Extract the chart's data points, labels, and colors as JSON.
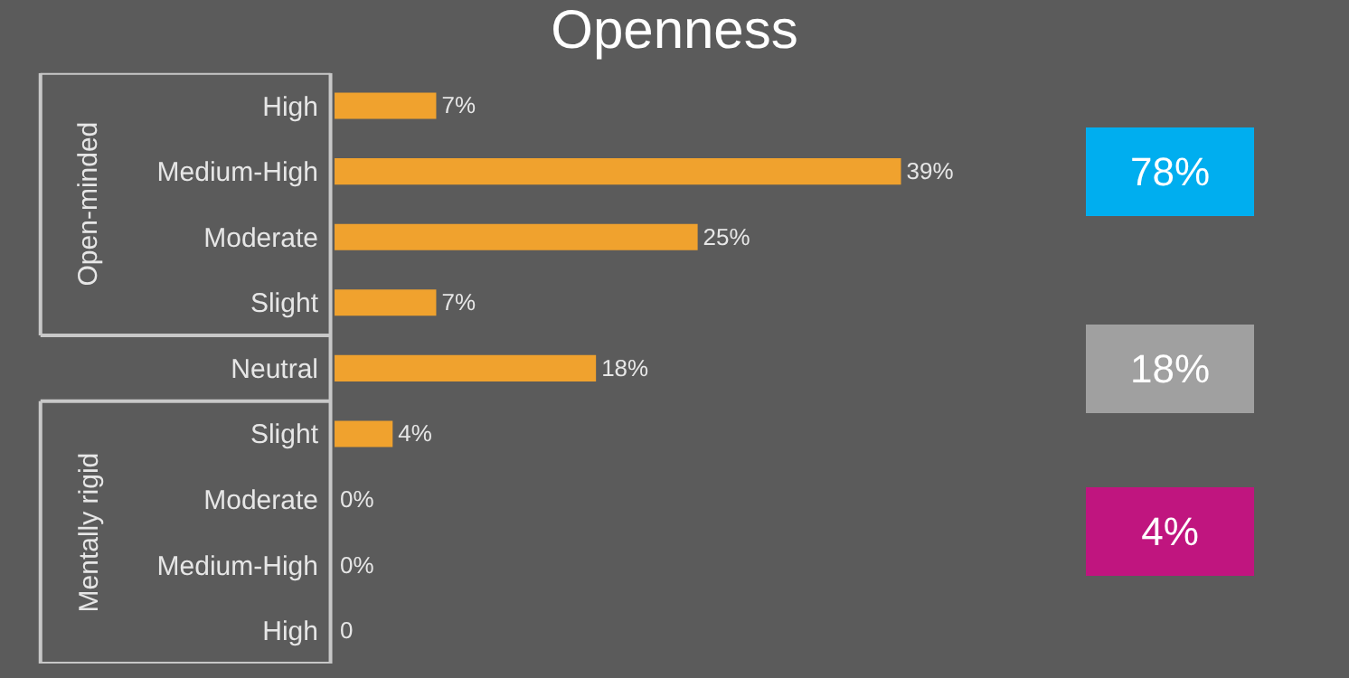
{
  "chart_data": {
    "type": "bar",
    "title": "Openness",
    "orientation": "horizontal",
    "categories": [
      "High",
      "Medium-High",
      "Moderate",
      "Slight",
      "Neutral",
      "Slight",
      "Moderate",
      "Medium-High",
      "High"
    ],
    "values": [
      7,
      39,
      25,
      7,
      18,
      4,
      0,
      0,
      0
    ],
    "value_labels": [
      "7%",
      "39%",
      "25%",
      "7%",
      "18%",
      "4%",
      "0%",
      "0%",
      "0"
    ],
    "color": "#f0a22e",
    "tick_labels": "y",
    "annotations": [
      "Open-minded",
      "Mentally rigid",
      "78%",
      "18%",
      "4%"
    ]
  }
}
